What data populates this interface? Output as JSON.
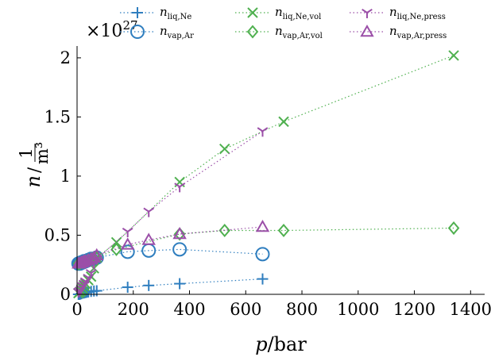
{
  "chart_data": {
    "type": "scatter",
    "xlabel": "p/bar",
    "ylabel": "n/(1/m³)",
    "y_multiplier_label": "×10^27",
    "xlim": [
      0,
      1450
    ],
    "ylim": [
      0,
      2.1
    ],
    "xticks": [
      0,
      200,
      400,
      600,
      800,
      1000,
      1200,
      1400
    ],
    "yticks": [
      0,
      0.5,
      1,
      1.5,
      2
    ],
    "ytick_labels": [
      "0",
      "0.5",
      "1",
      "1.5",
      "2"
    ],
    "grid": false,
    "legend_position": "top",
    "series": [
      {
        "name": "n_liq,Ne",
        "label_main": "n",
        "label_sub": "liq,Ne",
        "color": "#2f7ebf",
        "marker": "plus",
        "x": [
          5,
          10,
          15,
          20,
          25,
          30,
          35,
          40,
          50,
          60,
          70,
          180,
          255,
          365,
          660
        ],
        "y": [
          0.0,
          0.0,
          0.005,
          0.01,
          0.012,
          0.015,
          0.018,
          0.02,
          0.025,
          0.028,
          0.03,
          0.06,
          0.075,
          0.09,
          0.13
        ]
      },
      {
        "name": "n_vap,Ar",
        "label_main": "n",
        "label_sub": "vap,Ar",
        "color": "#2f7ebf",
        "marker": "circle",
        "x": [
          5,
          10,
          15,
          20,
          25,
          30,
          40,
          50,
          60,
          70,
          180,
          255,
          365,
          660
        ],
        "y": [
          0.26,
          0.26,
          0.27,
          0.27,
          0.28,
          0.28,
          0.29,
          0.3,
          0.3,
          0.31,
          0.36,
          0.37,
          0.38,
          0.34
        ]
      },
      {
        "name": "n_liq,Ne,vol",
        "label_main": "n",
        "label_sub": "liq,Ne,vol",
        "color": "#4fb04f",
        "marker": "x",
        "x": [
          5,
          10,
          15,
          20,
          25,
          30,
          40,
          50,
          60,
          70,
          140,
          365,
          525,
          735,
          1340
        ],
        "y": [
          0.01,
          0.02,
          0.03,
          0.05,
          0.07,
          0.09,
          0.12,
          0.15,
          0.22,
          0.31,
          0.44,
          0.95,
          1.23,
          1.46,
          2.02
        ]
      },
      {
        "name": "n_vap,Ar,vol",
        "label_main": "n",
        "label_sub": "vap,Ar,vol",
        "color": "#4fb04f",
        "marker": "diamond",
        "x": [
          5,
          10,
          20,
          30,
          40,
          60,
          70,
          140,
          365,
          525,
          735,
          1340
        ],
        "y": [
          0.26,
          0.26,
          0.27,
          0.28,
          0.29,
          0.3,
          0.31,
          0.38,
          0.51,
          0.54,
          0.54,
          0.56
        ]
      },
      {
        "name": "n_liq,Ne,press",
        "label_main": "n",
        "label_sub": "liq,Ne,press",
        "color": "#9b4fa8",
        "marker": "tri_down",
        "x": [
          5,
          10,
          15,
          20,
          25,
          30,
          40,
          50,
          60,
          70,
          180,
          255,
          365,
          660
        ],
        "y": [
          0.02,
          0.03,
          0.05,
          0.07,
          0.09,
          0.11,
          0.14,
          0.18,
          0.26,
          0.3,
          0.53,
          0.7,
          0.91,
          1.38
        ]
      },
      {
        "name": "n_vap,Ar,press",
        "label_main": "n",
        "label_sub": "vap,Ar,press",
        "color": "#9b4fa8",
        "marker": "triangle",
        "x": [
          5,
          10,
          15,
          20,
          25,
          30,
          40,
          50,
          60,
          70,
          180,
          255,
          365,
          660
        ],
        "y": [
          0.26,
          0.26,
          0.27,
          0.27,
          0.28,
          0.28,
          0.29,
          0.3,
          0.31,
          0.33,
          0.42,
          0.46,
          0.51,
          0.57
        ]
      }
    ]
  }
}
